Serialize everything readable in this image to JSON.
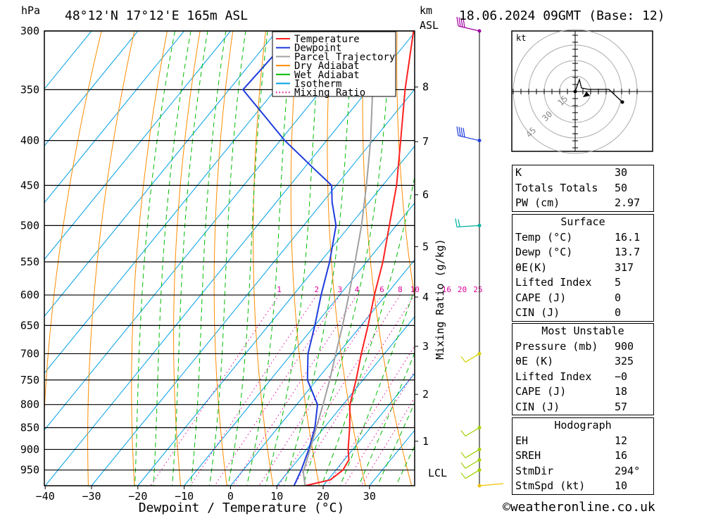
{
  "header": {
    "location": "48°12'N 17°12'E 165m ASL",
    "datetime": "18.06.2024 09GMT (Base: 12)",
    "pressure_unit": "hPa",
    "height_unit_line1": "km",
    "height_unit_line2": "ASL"
  },
  "axes": {
    "xlabel": "Dewpoint / Temperature (°C)",
    "mixing_ratio_label": "Mixing Ratio (g/kg)",
    "temp_ticks": [
      -40,
      -30,
      -20,
      -10,
      0,
      10,
      20,
      30
    ],
    "temp_tick_labels": [
      "−40",
      "−30",
      "−20",
      "−10",
      "0",
      "10",
      "20",
      "30"
    ],
    "pressure_levels": [
      300,
      350,
      400,
      450,
      500,
      550,
      600,
      650,
      700,
      750,
      800,
      850,
      900,
      950
    ],
    "height_ticks_km": [
      1,
      2,
      3,
      4,
      5,
      6,
      7,
      8
    ],
    "lcl_label": "LCL",
    "mixing_ratio_values": [
      1,
      2,
      3,
      4,
      6,
      8,
      10,
      16,
      20,
      25
    ]
  },
  "legend": [
    {
      "label": "Temperature",
      "color": "#ff2020",
      "style": "solid"
    },
    {
      "label": "Dewpoint",
      "color": "#1e3cdc",
      "style": "solid"
    },
    {
      "label": "Parcel Trajectory",
      "color": "#a0a0a0",
      "style": "solid"
    },
    {
      "label": "Dry Adiabat",
      "color": "#ff8c00",
      "style": "solid"
    },
    {
      "label": "Wet Adiabat",
      "color": "#00bb00",
      "style": "solid"
    },
    {
      "label": "Isotherm",
      "color": "#00a0e6",
      "style": "solid"
    },
    {
      "label": "Mixing Ratio",
      "color": "#e0009a",
      "style": "dotted"
    }
  ],
  "chart_data": {
    "type": "line",
    "chart_kind": "skew-T log-P sounding",
    "x_range_celsius": [
      -40,
      40
    ],
    "pressure_range_hpa": [
      300,
      990
    ],
    "series": [
      {
        "name": "Temperature",
        "points": [
          [
            990,
            16.1
          ],
          [
            975,
            20.5
          ],
          [
            950,
            21.5
          ],
          [
            925,
            21.0
          ],
          [
            900,
            19.0
          ],
          [
            850,
            15.5
          ],
          [
            800,
            11.5
          ],
          [
            750,
            8.5
          ],
          [
            700,
            5.0
          ],
          [
            650,
            1.5
          ],
          [
            600,
            -2.5
          ],
          [
            550,
            -6.5
          ],
          [
            500,
            -11.5
          ],
          [
            450,
            -17.0
          ],
          [
            400,
            -24.0
          ],
          [
            350,
            -32.0
          ],
          [
            300,
            -40.5
          ]
        ]
      },
      {
        "name": "Dewpoint",
        "points": [
          [
            990,
            13.7
          ],
          [
            950,
            12.5
          ],
          [
            900,
            10.5
          ],
          [
            850,
            8.0
          ],
          [
            800,
            4.5
          ],
          [
            750,
            -2.0
          ],
          [
            700,
            -6.5
          ],
          [
            650,
            -10.0
          ],
          [
            600,
            -14.0
          ],
          [
            550,
            -18.0
          ],
          [
            500,
            -23.0
          ],
          [
            470,
            -28.0
          ],
          [
            450,
            -31.0
          ],
          [
            430,
            -38.0
          ],
          [
            400,
            -49.0
          ],
          [
            350,
            -67.0
          ],
          [
            300,
            -66.0
          ]
        ]
      },
      {
        "name": "Parcel Trajectory",
        "points": [
          [
            990,
            16.1
          ],
          [
            955,
            13.3
          ],
          [
            900,
            10.8
          ],
          [
            850,
            8.3
          ],
          [
            800,
            5.7
          ],
          [
            750,
            2.8
          ],
          [
            700,
            -0.5
          ],
          [
            650,
            -4.0
          ],
          [
            600,
            -8.0
          ],
          [
            550,
            -12.5
          ],
          [
            500,
            -17.5
          ],
          [
            450,
            -23.5
          ],
          [
            400,
            -30.5
          ],
          [
            350,
            -39.0
          ],
          [
            300,
            -48.5
          ]
        ]
      }
    ],
    "wind_barb_levels_hpa": [
      300,
      400,
      500,
      700,
      850,
      900,
      925,
      950,
      990
    ]
  },
  "hodograph": {
    "unit": "kt",
    "ring_labels": [
      "15",
      "30",
      "45"
    ]
  },
  "indices": {
    "general": [
      {
        "label": "K",
        "value": "30"
      },
      {
        "label": "Totals Totals",
        "value": "50"
      },
      {
        "label": "PW (cm)",
        "value": "2.97"
      }
    ],
    "surface": {
      "title": "Surface",
      "rows": [
        {
          "label": "Temp (°C)",
          "value": "16.1"
        },
        {
          "label": "Dewp (°C)",
          "value": "13.7"
        },
        {
          "label": "θE(K)",
          "value": "317"
        },
        {
          "label": "Lifted Index",
          "value": "5"
        },
        {
          "label": "CAPE (J)",
          "value": "0"
        },
        {
          "label": "CIN (J)",
          "value": "0"
        }
      ]
    },
    "most_unstable": {
      "title": "Most Unstable",
      "rows": [
        {
          "label": "Pressure (mb)",
          "value": "900"
        },
        {
          "label": "θE (K)",
          "value": "325"
        },
        {
          "label": "Lifted Index",
          "value": "−0"
        },
        {
          "label": "CAPE (J)",
          "value": "18"
        },
        {
          "label": "CIN (J)",
          "value": "57"
        }
      ]
    },
    "hodograph_table": {
      "title": "Hodograph",
      "rows": [
        {
          "label": "EH",
          "value": "12"
        },
        {
          "label": "SREH",
          "value": "16"
        },
        {
          "label": "StmDir",
          "value": "294°"
        },
        {
          "label": "StmSpd (kt)",
          "value": "10"
        }
      ]
    }
  },
  "footer": {
    "copyright": "©weatheronline.co.uk"
  }
}
